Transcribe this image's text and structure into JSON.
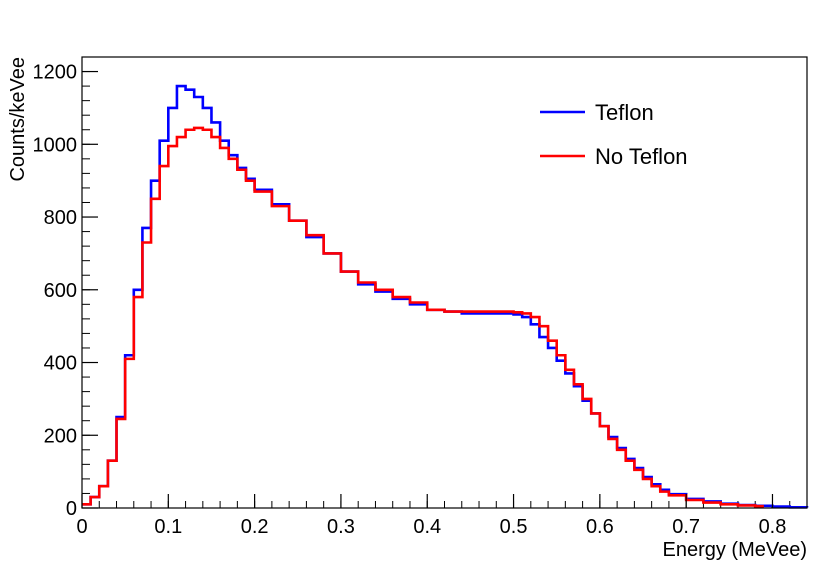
{
  "chart_data": {
    "type": "line",
    "title": "",
    "xlabel": "Energy (MeVee)",
    "ylabel": "Counts/keVee",
    "xlim": [
      0,
      0.84
    ],
    "ylim": [
      0,
      1240
    ],
    "x_ticks": [
      0,
      0.1,
      0.2,
      0.3,
      0.4,
      0.5,
      0.6,
      0.7,
      0.8
    ],
    "x_tick_labels": [
      "0",
      "0.1",
      "0.2",
      "0.3",
      "0.4",
      "0.5",
      "0.6",
      "0.7",
      "0.8"
    ],
    "y_ticks": [
      0,
      200,
      400,
      600,
      800,
      1000,
      1200
    ],
    "y_tick_labels": [
      "0",
      "200",
      "400",
      "600",
      "800",
      "1000",
      "1200"
    ],
    "grid": false,
    "legend_position": "top-right",
    "series": [
      {
        "name": "Teflon",
        "color": "#0000ff",
        "x": [
          0.0,
          0.01,
          0.02,
          0.03,
          0.04,
          0.05,
          0.06,
          0.07,
          0.08,
          0.09,
          0.1,
          0.11,
          0.12,
          0.13,
          0.14,
          0.15,
          0.16,
          0.17,
          0.18,
          0.19,
          0.2,
          0.22,
          0.24,
          0.26,
          0.28,
          0.3,
          0.32,
          0.34,
          0.36,
          0.38,
          0.4,
          0.42,
          0.44,
          0.46,
          0.48,
          0.5,
          0.51,
          0.52,
          0.53,
          0.54,
          0.55,
          0.56,
          0.57,
          0.58,
          0.59,
          0.6,
          0.61,
          0.62,
          0.63,
          0.64,
          0.65,
          0.66,
          0.67,
          0.68,
          0.7,
          0.72,
          0.74,
          0.76,
          0.78,
          0.8,
          0.82,
          0.84
        ],
        "y": [
          10,
          30,
          60,
          130,
          250,
          420,
          600,
          770,
          900,
          1010,
          1100,
          1160,
          1150,
          1130,
          1100,
          1060,
          1010,
          970,
          935,
          905,
          875,
          835,
          790,
          745,
          700,
          650,
          615,
          595,
          575,
          560,
          545,
          540,
          535,
          535,
          535,
          532,
          525,
          505,
          470,
          440,
          405,
          370,
          335,
          295,
          260,
          225,
          195,
          165,
          135,
          110,
          85,
          65,
          50,
          38,
          25,
          18,
          12,
          8,
          6,
          4,
          2,
          1
        ]
      },
      {
        "name": "No Teflon",
        "color": "#ff0000",
        "x": [
          0.0,
          0.01,
          0.02,
          0.03,
          0.04,
          0.05,
          0.06,
          0.07,
          0.08,
          0.09,
          0.1,
          0.11,
          0.12,
          0.13,
          0.14,
          0.15,
          0.16,
          0.17,
          0.18,
          0.19,
          0.2,
          0.22,
          0.24,
          0.26,
          0.28,
          0.3,
          0.32,
          0.34,
          0.36,
          0.38,
          0.4,
          0.42,
          0.44,
          0.46,
          0.48,
          0.5,
          0.51,
          0.52,
          0.53,
          0.54,
          0.55,
          0.56,
          0.57,
          0.58,
          0.59,
          0.6,
          0.61,
          0.62,
          0.63,
          0.64,
          0.65,
          0.66,
          0.67,
          0.68,
          0.7,
          0.72,
          0.74,
          0.76,
          0.78
        ],
        "y": [
          10,
          30,
          60,
          130,
          245,
          410,
          580,
          730,
          850,
          940,
          995,
          1020,
          1040,
          1045,
          1040,
          1020,
          990,
          960,
          930,
          900,
          870,
          830,
          790,
          750,
          700,
          650,
          620,
          600,
          580,
          565,
          545,
          540,
          540,
          540,
          540,
          538,
          535,
          525,
          500,
          460,
          420,
          380,
          340,
          300,
          260,
          225,
          190,
          160,
          130,
          105,
          80,
          60,
          45,
          35,
          22,
          15,
          10,
          7,
          5
        ]
      }
    ]
  }
}
